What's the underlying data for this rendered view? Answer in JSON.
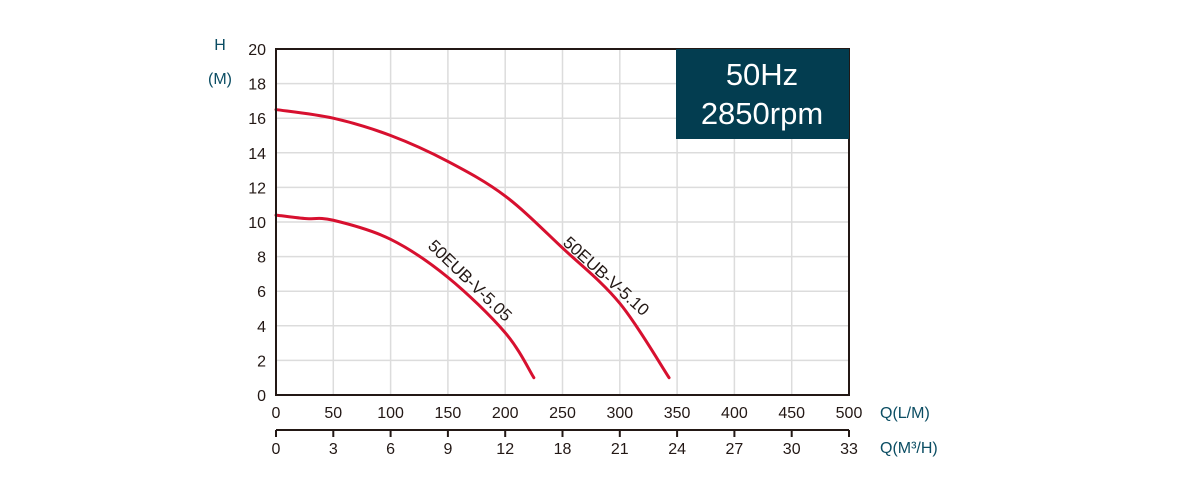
{
  "chart_data": {
    "type": "line",
    "title": "",
    "badge": {
      "line1": "50Hz",
      "line2": "2850rpm",
      "bg_color": "#033d50",
      "text_color": "#ffffff"
    },
    "ylabel": {
      "line1": "H",
      "line2": "(M)"
    },
    "xlabel_primary": "Q(L/M)",
    "xlabel_secondary": "Q(M³/H)",
    "ylim": [
      0,
      20
    ],
    "xlim": [
      0,
      500
    ],
    "y_ticks": [
      "0",
      "2",
      "4",
      "6",
      "8",
      "10",
      "12",
      "14",
      "16",
      "18",
      "20"
    ],
    "x_ticks_lpm": [
      "0",
      "50",
      "100",
      "150",
      "200",
      "250",
      "300",
      "350",
      "400",
      "450",
      "500"
    ],
    "x_ticks_m3h": [
      "0",
      "3",
      "6",
      "9",
      "12",
      "18",
      "21",
      "24",
      "27",
      "30",
      "33"
    ],
    "grid": true,
    "curve_color": "#d7102f",
    "series": [
      {
        "name": "50EUB-V-5.10",
        "x": [
          0,
          50,
          100,
          150,
          200,
          250,
          300,
          343
        ],
        "y": [
          16.5,
          16.0,
          15.0,
          13.5,
          11.5,
          8.5,
          5.3,
          1.0
        ]
      },
      {
        "name": "50EUB-V-5.05",
        "x": [
          0,
          25,
          50,
          100,
          150,
          200,
          225
        ],
        "y": [
          10.4,
          10.2,
          10.1,
          9.0,
          6.8,
          3.6,
          1.0
        ]
      }
    ]
  }
}
